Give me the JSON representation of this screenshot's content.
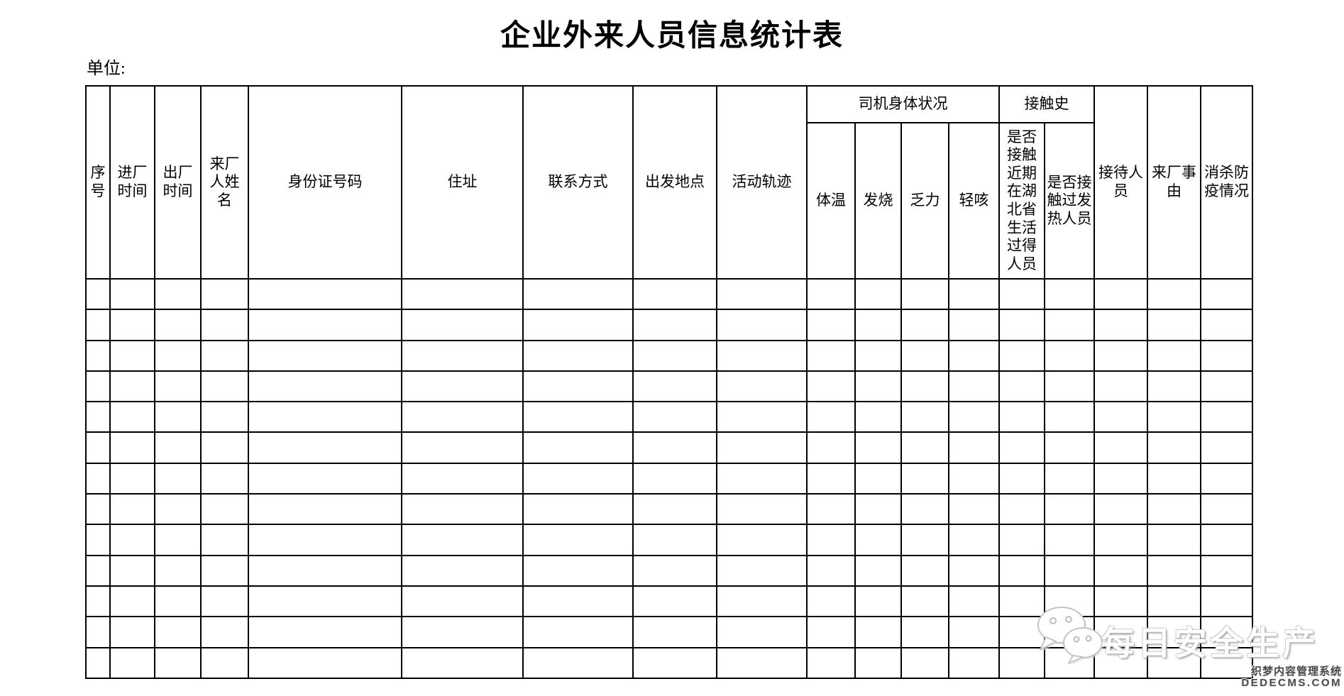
{
  "page": {
    "title": "企业外来人员信息统计表",
    "unit_label": "单位:"
  },
  "table": {
    "headers": {
      "index": "序号",
      "entry_time": "进厂时间",
      "exit_time": "出厂时间",
      "visitor_name": "来厂人姓名",
      "id_number": "身份证号码",
      "address": "住址",
      "contact_method": "联系方式",
      "departure_place": "出发地点",
      "activity_track": "活动轨迹",
      "driver_condition_group": "司机身体状况",
      "temperature": "体温",
      "fever": "发烧",
      "fatigue": "乏力",
      "light_cough": "轻咳",
      "contact_history_group": "接触史",
      "hubei_contact": "是否接触近期在湖北省生活过得人员",
      "fever_contact": "是否接触过发热人员",
      "reception_staff": "接待人员",
      "visit_reason": "来厂事由",
      "disinfection_status": "消杀防疫情况"
    },
    "body": {
      "row_count": 13,
      "column_count": 18,
      "cell_value": ""
    }
  },
  "watermark": {
    "logo": "wechat-logo",
    "brand_text": "每日安全生产",
    "cms_line1": "织梦内容管理系统",
    "cms_line2": "DEDECMS.COM"
  },
  "colors": {
    "border": "#000000",
    "text": "#000000",
    "watermark_text": "#ffffff",
    "watermark_shadow": "#bdbdbd",
    "cms_text": "#4a4a4a"
  }
}
